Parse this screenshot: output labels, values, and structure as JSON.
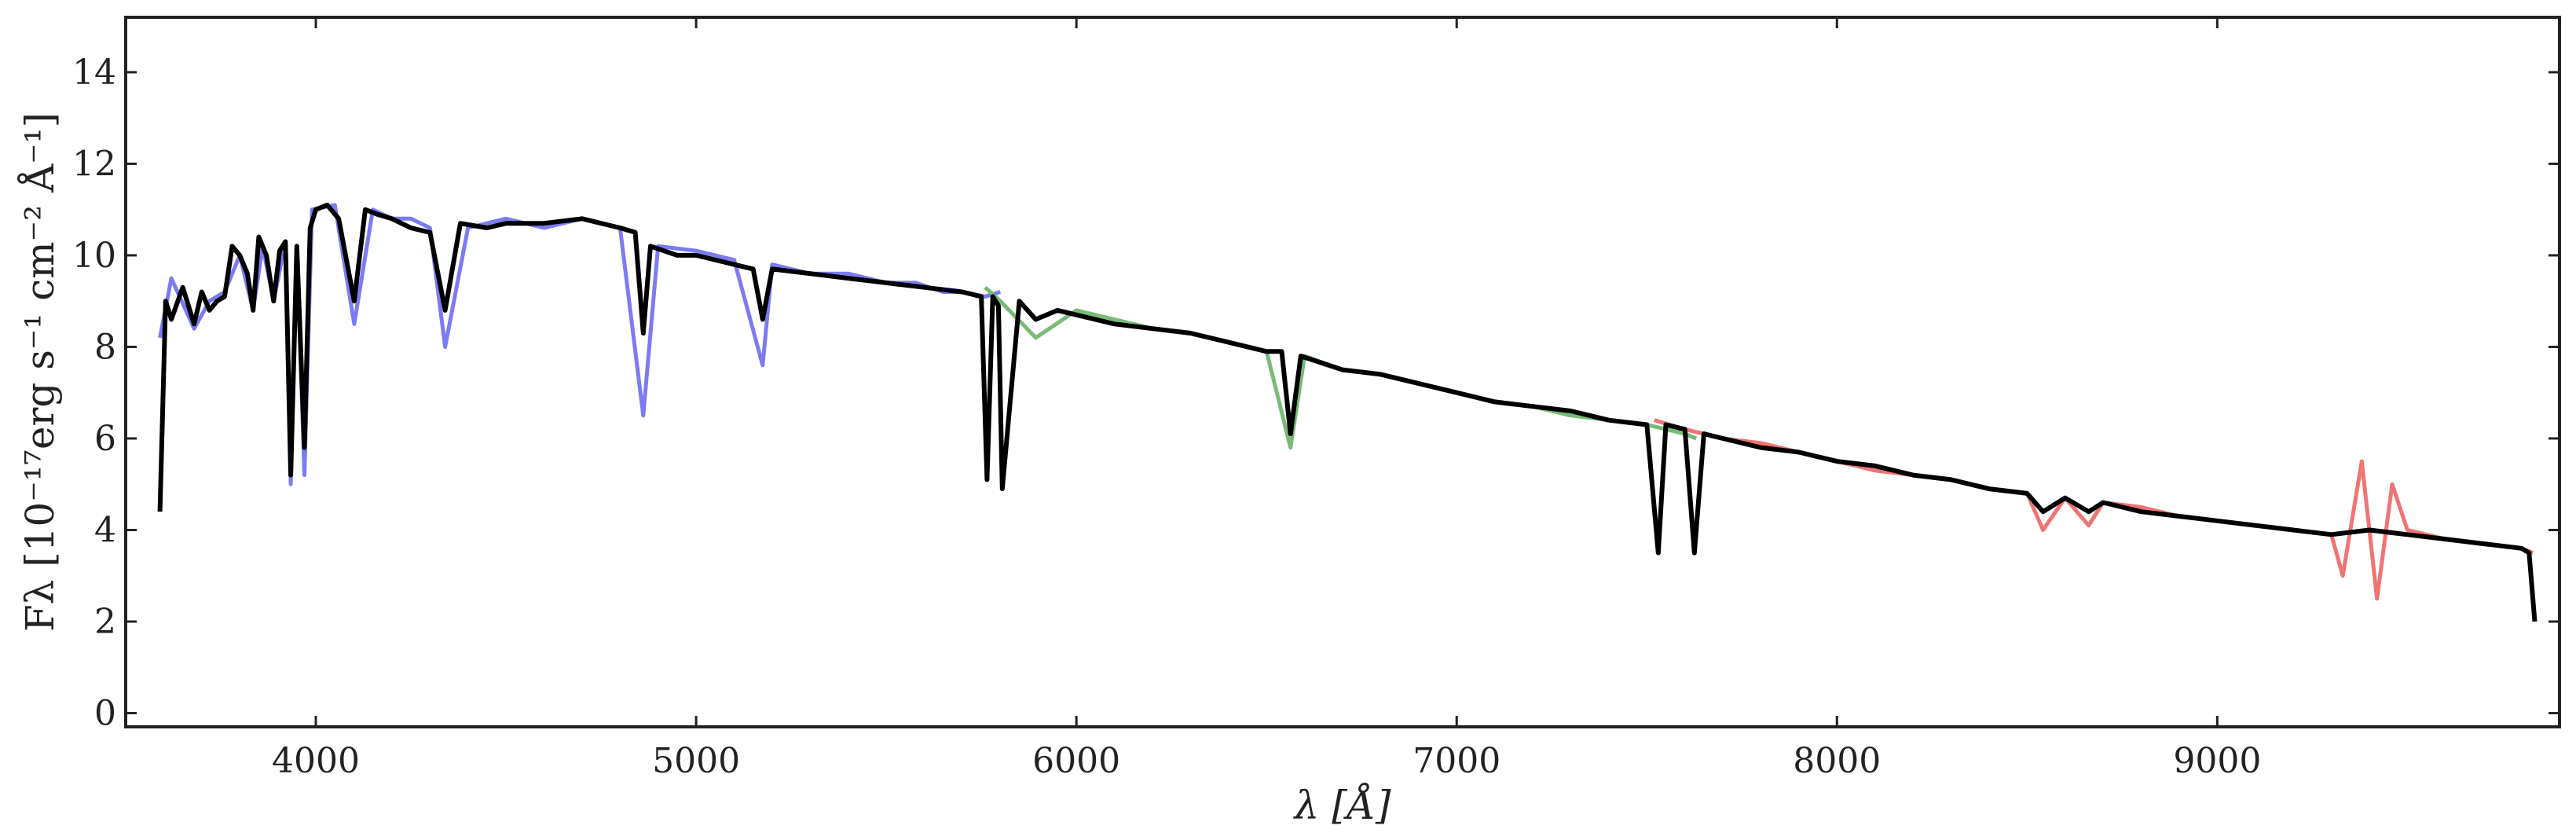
{
  "chart_data": {
    "type": "line",
    "title": "",
    "xlabel": "λ [Å]",
    "ylabel": "Fλ [10⁻¹⁷erg s⁻¹ cm⁻² Å⁻¹]",
    "xlim": [
      3500,
      9900
    ],
    "ylim": [
      -0.3,
      15.2
    ],
    "x_ticks": [
      4000,
      5000,
      6000,
      7000,
      8000,
      9000
    ],
    "x_tick_labels": [
      "4000",
      "5000",
      "6000",
      "7000",
      "8000",
      "9000"
    ],
    "y_ticks": [
      0,
      2,
      4,
      6,
      8,
      10,
      12,
      14
    ],
    "y_tick_labels": [
      "0",
      "2",
      "4",
      "6",
      "8",
      "10",
      "12",
      "14"
    ],
    "grid": false,
    "legend": "none",
    "series": [
      {
        "color": "#7b7bf2",
        "x": [
          3590,
          3620,
          3680,
          3720,
          3760,
          3800,
          3835,
          3860,
          3889,
          3920,
          3934,
          3950,
          3970,
          3990,
          4050,
          4101,
          4150,
          4200,
          4250,
          4300,
          4340,
          4400,
          4500,
          4600,
          4700,
          4800,
          4861,
          4900,
          5000,
          5100,
          5175,
          5200,
          5300,
          5400,
          5500,
          5577,
          5650,
          5700,
          5760,
          5800
        ],
        "y": [
          8.2,
          9.5,
          8.4,
          9.0,
          9.2,
          10.0,
          8.8,
          10.2,
          9.0,
          10.3,
          5.0,
          10.2,
          5.2,
          11.0,
          11.1,
          8.5,
          11.0,
          10.8,
          10.8,
          10.6,
          8.0,
          10.6,
          10.8,
          10.6,
          10.8,
          10.6,
          6.5,
          10.2,
          10.1,
          9.9,
          7.6,
          9.8,
          9.6,
          9.6,
          9.4,
          9.4,
          9.2,
          9.2,
          9.1,
          9.2
        ]
      },
      {
        "color": "#77bb77",
        "x": [
          5760,
          5800,
          5893,
          6000,
          6100,
          6200,
          6300,
          6400,
          6500,
          6563,
          6600,
          6700,
          6800,
          6900,
          7000,
          7100,
          7200,
          7300,
          7400,
          7500,
          7600,
          7630
        ],
        "y": [
          9.3,
          9.0,
          8.2,
          8.8,
          8.6,
          8.4,
          8.3,
          8.1,
          7.9,
          5.8,
          7.8,
          7.5,
          7.4,
          7.2,
          7.0,
          6.8,
          6.7,
          6.5,
          6.4,
          6.3,
          6.1,
          6.0
        ]
      },
      {
        "color": "#f07474",
        "x": [
          7520,
          7600,
          7700,
          7800,
          7900,
          8000,
          8100,
          8200,
          8300,
          8400,
          8500,
          8542,
          8600,
          8662,
          8700,
          8800,
          8900,
          9000,
          9100,
          9200,
          9300,
          9330,
          9380,
          9420,
          9460,
          9500,
          9600,
          9700,
          9800,
          9830
        ],
        "y": [
          6.4,
          6.2,
          6.0,
          5.9,
          5.7,
          5.5,
          5.3,
          5.2,
          5.1,
          4.9,
          4.8,
          4.0,
          4.7,
          4.1,
          4.6,
          4.5,
          4.3,
          4.2,
          4.1,
          4.0,
          3.9,
          3.0,
          5.5,
          2.5,
          5.0,
          4.0,
          3.8,
          3.7,
          3.6,
          3.5
        ]
      },
      {
        "color": "#000000",
        "x": [
          3590,
          3605,
          3620,
          3650,
          3680,
          3700,
          3720,
          3740,
          3760,
          3780,
          3800,
          3820,
          3835,
          3850,
          3870,
          3889,
          3905,
          3920,
          3934,
          3950,
          3970,
          3985,
          4000,
          4030,
          4060,
          4101,
          4130,
          4160,
          4200,
          4250,
          4300,
          4340,
          4380,
          4450,
          4500,
          4600,
          4700,
          4800,
          4840,
          4861,
          4880,
          4950,
          5000,
          5100,
          5150,
          5175,
          5200,
          5300,
          5400,
          5500,
          5600,
          5700,
          5750,
          5765,
          5780,
          5795,
          5805,
          5850,
          5893,
          5950,
          6000,
          6100,
          6200,
          6300,
          6400,
          6500,
          6540,
          6563,
          6590,
          6700,
          6800,
          6900,
          7000,
          7100,
          7200,
          7300,
          7400,
          7500,
          7530,
          7550,
          7600,
          7625,
          7650,
          7700,
          7800,
          7900,
          8000,
          8100,
          8200,
          8300,
          8400,
          8500,
          8542,
          8600,
          8662,
          8700,
          8800,
          8900,
          9000,
          9100,
          9200,
          9300,
          9400,
          9500,
          9600,
          9700,
          9800,
          9820,
          9835
        ],
        "y": [
          4.4,
          9.0,
          8.6,
          9.3,
          8.5,
          9.2,
          8.8,
          9.0,
          9.1,
          10.2,
          10.0,
          9.6,
          8.8,
          10.4,
          10.0,
          9.0,
          10.1,
          10.3,
          5.2,
          10.2,
          5.8,
          10.6,
          11.0,
          11.1,
          10.8,
          9.0,
          11.0,
          10.9,
          10.8,
          10.6,
          10.5,
          8.8,
          10.7,
          10.6,
          10.7,
          10.7,
          10.8,
          10.6,
          10.5,
          8.3,
          10.2,
          10.0,
          10.0,
          9.8,
          9.7,
          8.6,
          9.7,
          9.6,
          9.5,
          9.4,
          9.3,
          9.2,
          9.1,
          5.1,
          9.1,
          8.9,
          4.9,
          9.0,
          8.6,
          8.8,
          8.7,
          8.5,
          8.4,
          8.3,
          8.1,
          7.9,
          7.9,
          6.1,
          7.8,
          7.5,
          7.4,
          7.2,
          7.0,
          6.8,
          6.7,
          6.6,
          6.4,
          6.3,
          3.5,
          6.3,
          6.2,
          3.5,
          6.1,
          6.0,
          5.8,
          5.7,
          5.5,
          5.4,
          5.2,
          5.1,
          4.9,
          4.8,
          4.4,
          4.7,
          4.4,
          4.6,
          4.4,
          4.3,
          4.2,
          4.1,
          4.0,
          3.9,
          4.0,
          3.9,
          3.8,
          3.7,
          3.6,
          3.5,
          2.0
        ]
      }
    ]
  }
}
